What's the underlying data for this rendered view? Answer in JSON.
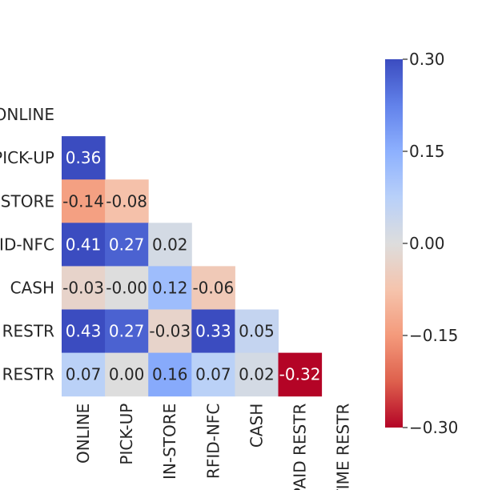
{
  "chart_data": {
    "type": "heatmap",
    "title": "",
    "xlabel": "",
    "ylabel": "",
    "mask": "upper-triangle-and-diagonal",
    "row_labels": [
      "ONLINE",
      "PICK-UP",
      "IN-STORE",
      "RFID-NFC",
      "CASH",
      "PAID RESTR",
      "TIME RESTR"
    ],
    "col_labels": [
      "ONLINE",
      "PICK-UP",
      "IN-STORE",
      "RFID-NFC",
      "CASH",
      "PAID RESTR",
      "TIME RESTR"
    ],
    "values": [
      [
        null,
        null,
        null,
        null,
        null,
        null,
        null
      ],
      [
        0.36,
        null,
        null,
        null,
        null,
        null,
        null
      ],
      [
        -0.14,
        -0.08,
        null,
        null,
        null,
        null,
        null
      ],
      [
        0.41,
        0.27,
        0.02,
        null,
        null,
        null,
        null
      ],
      [
        -0.03,
        -0.0,
        0.12,
        -0.06,
        null,
        null,
        null
      ],
      [
        0.43,
        0.27,
        -0.03,
        0.33,
        0.05,
        null,
        null
      ],
      [
        0.07,
        0.0,
        0.16,
        0.07,
        0.02,
        -0.32,
        null
      ]
    ],
    "value_labels": [
      [
        null,
        null,
        null,
        null,
        null,
        null,
        null
      ],
      [
        "0.36",
        null,
        null,
        null,
        null,
        null,
        null
      ],
      [
        "-0.14",
        "-0.08",
        null,
        null,
        null,
        null,
        null
      ],
      [
        "0.41",
        "0.27",
        "0.02",
        null,
        null,
        null,
        null
      ],
      [
        "-0.03",
        "-0.00",
        "0.12",
        "-0.06",
        null,
        null,
        null
      ],
      [
        "0.43",
        "0.27",
        "-0.03",
        "0.33",
        "0.05",
        null,
        null
      ],
      [
        "0.07",
        "0.00",
        "0.16",
        "0.07",
        "0.02",
        "-0.32",
        null
      ]
    ],
    "colormap": "coolwarm",
    "vmin": -0.3,
    "vmax": 0.3,
    "colorbar_ticks": [
      0.3,
      0.15,
      0.0,
      -0.15,
      -0.3
    ],
    "colorbar_tick_labels": [
      "0.30",
      "0.15",
      "0.00",
      "−0.15",
      "−0.30"
    ]
  }
}
